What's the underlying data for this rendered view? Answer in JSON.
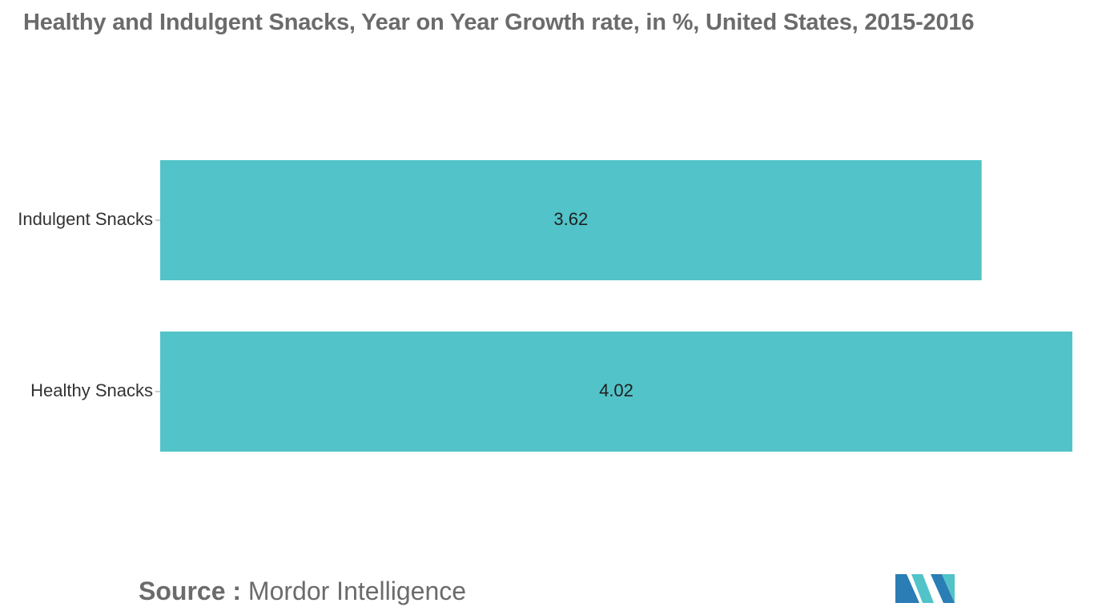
{
  "chart_data": {
    "type": "bar",
    "orientation": "horizontal",
    "title": "Healthy and Indulgent Snacks, Year on Year Growth rate, in %, United States, 2015-2016",
    "categories": [
      "Indulgent Snacks",
      "Healthy Snacks"
    ],
    "values": [
      3.62,
      4.02
    ],
    "data_labels": [
      "3.62",
      "4.02"
    ],
    "xlabel": "",
    "ylabel": "",
    "xlim": [
      0,
      4.02
    ],
    "grid": false,
    "legend": "none",
    "bar_color": "#52c3c8"
  },
  "source": {
    "label": "Source :",
    "value": "Mordor Intelligence"
  },
  "logo": {
    "icon": "mordor-intelligence-logo",
    "colors": [
      "#52c3c8",
      "#2a7db5"
    ]
  }
}
